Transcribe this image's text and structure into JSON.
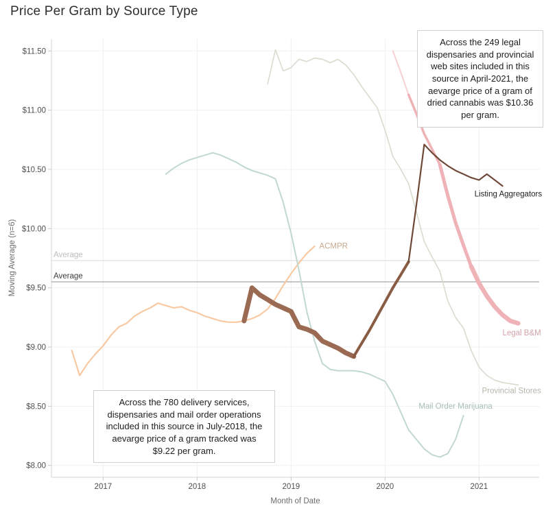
{
  "chart_data": {
    "type": "line",
    "title": "Price Per Gram by Source Type",
    "xlabel": "Month of Date",
    "ylabel": "Moving Average (n=6)",
    "xlim": [
      2016.45,
      2021.64
    ],
    "ylim": [
      7.9,
      11.6
    ],
    "grid": true,
    "legend_position": "inline-end-of-line-labels",
    "x_ticks": [
      {
        "value": 2017,
        "label": "2017"
      },
      {
        "value": 2018,
        "label": "2018"
      },
      {
        "value": 2019,
        "label": "2019"
      },
      {
        "value": 2020,
        "label": "2020"
      },
      {
        "value": 2021,
        "label": "2021"
      }
    ],
    "y_ticks": [
      {
        "value": 8.0,
        "label": "$8.00"
      },
      {
        "value": 8.5,
        "label": "$8.50"
      },
      {
        "value": 9.0,
        "label": "$9.00"
      },
      {
        "value": 9.5,
        "label": "$9.50"
      },
      {
        "value": 10.0,
        "label": "$10.00"
      },
      {
        "value": 10.5,
        "label": "$10.50"
      },
      {
        "value": 11.0,
        "label": "$11.00"
      },
      {
        "value": 11.5,
        "label": "$11.50"
      }
    ],
    "reference_lines": [
      {
        "label": "Average",
        "value": 9.73,
        "line_color": "#d9d9d9",
        "label_color": "#bdbdbd"
      },
      {
        "label": "Average",
        "value": 9.55,
        "line_color": "#8f8f8f",
        "label_color": "#3c3c3c"
      }
    ],
    "annotations": [
      {
        "text": "Across the 249 legal dispensaries and provincial web sites included in this source in April-2021, the aevarge price of a gram of dried cannabis was $10.36 per gram."
      },
      {
        "text": "Across the 780 delivery services, dispensaries and mail order operations included in this source in July-2018, the aevarge price of a gram tracked was $9.22 per gram."
      }
    ],
    "series": [
      {
        "id": "acmpr",
        "name": "ACMPR",
        "label": {
          "text": "ACMPR",
          "color": "#c7a98f",
          "t": 2019.3,
          "v": 9.83,
          "anchor": "start"
        },
        "segments": [
          {
            "color": "#f8c9a2",
            "width": 2.2,
            "points": [
              [
                "2016-09",
                8.97
              ],
              [
                "2016-10",
                8.76
              ],
              [
                "2016-11",
                8.86
              ],
              [
                "2016-12",
                8.94
              ],
              [
                "2017-01",
                9.01
              ],
              [
                "2017-02",
                9.1
              ],
              [
                "2017-03",
                9.17
              ],
              [
                "2017-04",
                9.2
              ],
              [
                "2017-05",
                9.26
              ],
              [
                "2017-06",
                9.3
              ],
              [
                "2017-07",
                9.33
              ],
              [
                "2017-08",
                9.37
              ],
              [
                "2017-09",
                9.35
              ],
              [
                "2017-10",
                9.33
              ],
              [
                "2017-11",
                9.34
              ],
              [
                "2017-12",
                9.31
              ],
              [
                "2018-01",
                9.29
              ],
              [
                "2018-02",
                9.26
              ],
              [
                "2018-03",
                9.24
              ],
              [
                "2018-04",
                9.22
              ],
              [
                "2018-05",
                9.21
              ],
              [
                "2018-06",
                9.21
              ],
              [
                "2018-07",
                9.22
              ],
              [
                "2018-08",
                9.24
              ],
              [
                "2018-09",
                9.27
              ],
              [
                "2018-10",
                9.32
              ],
              [
                "2018-11",
                9.41
              ],
              [
                "2018-12",
                9.52
              ],
              [
                "2019-01",
                9.62
              ],
              [
                "2019-02",
                9.71
              ],
              [
                "2019-03",
                9.79
              ],
              [
                "2019-04",
                9.85
              ]
            ]
          }
        ]
      },
      {
        "id": "mail-order-marijuana",
        "name": "Mail Order Marijuana",
        "label": {
          "text": "Mail Order Marijuana",
          "color": "#a7bfb4",
          "t": 2020.75,
          "v": 8.48,
          "anchor": "middle"
        },
        "segments": [
          {
            "color": "#c0d8ce",
            "width": 2,
            "points": [
              [
                "2017-09",
                10.46
              ],
              [
                "2017-10",
                10.51
              ],
              [
                "2017-11",
                10.55
              ],
              [
                "2017-12",
                10.58
              ],
              [
                "2018-01",
                10.6
              ],
              [
                "2018-02",
                10.62
              ],
              [
                "2018-03",
                10.64
              ],
              [
                "2018-04",
                10.62
              ],
              [
                "2018-05",
                10.59
              ],
              [
                "2018-06",
                10.56
              ],
              [
                "2018-07",
                10.52
              ],
              [
                "2018-08",
                10.49
              ],
              [
                "2018-09",
                10.47
              ],
              [
                "2018-10",
                10.45
              ],
              [
                "2018-11",
                10.42
              ],
              [
                "2018-12",
                10.22
              ],
              [
                "2019-01",
                9.96
              ],
              [
                "2019-02",
                9.65
              ],
              [
                "2019-03",
                9.3
              ],
              [
                "2019-04",
                9.05
              ],
              [
                "2019-05",
                8.86
              ],
              [
                "2019-06",
                8.81
              ],
              [
                "2019-07",
                8.8
              ],
              [
                "2019-08",
                8.8
              ],
              [
                "2019-09",
                8.8
              ],
              [
                "2019-10",
                8.79
              ],
              [
                "2019-11",
                8.77
              ],
              [
                "2019-12",
                8.74
              ],
              [
                "2020-01",
                8.71
              ],
              [
                "2020-02",
                8.6
              ],
              [
                "2020-03",
                8.45
              ],
              [
                "2020-04",
                8.3
              ],
              [
                "2020-05",
                8.22
              ],
              [
                "2020-06",
                8.14
              ],
              [
                "2020-07",
                8.09
              ],
              [
                "2020-08",
                8.07
              ],
              [
                "2020-09",
                8.1
              ],
              [
                "2020-10",
                8.22
              ],
              [
                "2020-11",
                8.42
              ]
            ]
          }
        ]
      },
      {
        "id": "provincial-stores",
        "name": "Provincial Stores",
        "label": {
          "text": "Provincial Stores",
          "color": "#b3b8ab",
          "t": 2021.66,
          "v": 8.61,
          "anchor": "end"
        },
        "segments": [
          {
            "color": "#d8dccd",
            "width": 1.6,
            "points": [
              [
                "2018-10",
                11.22
              ],
              [
                "2018-11",
                11.51
              ],
              [
                "2018-12",
                11.33
              ],
              [
                "2019-01",
                11.36
              ],
              [
                "2019-02",
                11.43
              ],
              [
                "2019-03",
                11.41
              ],
              [
                "2019-04",
                11.44
              ],
              [
                "2019-05",
                11.43
              ],
              [
                "2019-06",
                11.4
              ],
              [
                "2019-07",
                11.43
              ],
              [
                "2019-08",
                11.38
              ],
              [
                "2019-09",
                11.3
              ],
              [
                "2019-10",
                11.2
              ],
              [
                "2019-11",
                11.11
              ],
              [
                "2019-12",
                11.02
              ],
              [
                "2020-01",
                10.83
              ],
              [
                "2020-02",
                10.61
              ],
              [
                "2020-03",
                10.5
              ],
              [
                "2020-04",
                10.38
              ],
              [
                "2020-05",
                10.14
              ],
              [
                "2020-06",
                9.89
              ],
              [
                "2020-07",
                9.76
              ],
              [
                "2020-08",
                9.64
              ],
              [
                "2020-09",
                9.39
              ],
              [
                "2020-10",
                9.25
              ],
              [
                "2020-11",
                9.16
              ],
              [
                "2020-12",
                8.97
              ],
              [
                "2021-01",
                8.83
              ],
              [
                "2021-02",
                8.76
              ],
              [
                "2021-03",
                8.72
              ],
              [
                "2021-04",
                8.7
              ],
              [
                "2021-05",
                8.69
              ],
              [
                "2021-06",
                8.68
              ]
            ]
          }
        ]
      },
      {
        "id": "legal-bm",
        "name": "Legal B&M",
        "label": {
          "text": "Legal B&M",
          "color": "#d2a3a7",
          "t": 2021.66,
          "v": 9.1,
          "anchor": "end"
        },
        "segments": [
          {
            "color": "#f7d0d3",
            "width": 2,
            "points": [
              [
                "2020-02",
                11.5
              ],
              [
                "2020-03",
                11.32
              ],
              [
                "2020-04",
                11.13
              ]
            ]
          },
          {
            "color": "#efb2b6",
            "width": 3.5,
            "points": [
              [
                "2020-04",
                11.13
              ],
              [
                "2020-05",
                10.97
              ],
              [
                "2020-06",
                10.8
              ],
              [
                "2020-07",
                10.67
              ],
              [
                "2020-08",
                10.54
              ]
            ]
          },
          {
            "color": "#efb2b6",
            "width": 5,
            "points": [
              [
                "2020-08",
                10.54
              ],
              [
                "2020-09",
                10.28
              ],
              [
                "2020-10",
                10.05
              ],
              [
                "2020-11",
                9.86
              ],
              [
                "2020-12",
                9.68
              ]
            ]
          },
          {
            "color": "#efb2b6",
            "width": 6.5,
            "points": [
              [
                "2020-12",
                9.68
              ],
              [
                "2021-01",
                9.54
              ],
              [
                "2021-02",
                9.43
              ],
              [
                "2021-03",
                9.34
              ],
              [
                "2021-04",
                9.27
              ],
              [
                "2021-05",
                9.22
              ],
              [
                "2021-06",
                9.2
              ]
            ]
          }
        ]
      },
      {
        "id": "listing-aggregators",
        "name": "Listing Aggregators",
        "label": {
          "text": "Listing Aggregators",
          "color": "#1f1f1f",
          "t": 2021.67,
          "v": 10.27,
          "anchor": "end"
        },
        "segments": [
          {
            "color": "#9a6a52",
            "width": 7,
            "points": [
              [
                "2018-07",
                9.22
              ],
              [
                "2018-08",
                9.5
              ],
              [
                "2018-09",
                9.44
              ],
              [
                "2018-10",
                9.4
              ],
              [
                "2018-11",
                9.36
              ],
              [
                "2018-12",
                9.33
              ],
              [
                "2019-01",
                9.3
              ],
              [
                "2019-02",
                9.17
              ],
              [
                "2019-03",
                9.15
              ],
              [
                "2019-04",
                9.12
              ],
              [
                "2019-05",
                9.05
              ],
              [
                "2019-06",
                9.02
              ],
              [
                "2019-07",
                8.99
              ],
              [
                "2019-08",
                8.95
              ],
              [
                "2019-09",
                8.92
              ]
            ]
          },
          {
            "color": "#8a5c44",
            "width": 4,
            "points": [
              [
                "2019-09",
                8.92
              ],
              [
                "2019-10",
                9.03
              ],
              [
                "2019-11",
                9.14
              ],
              [
                "2019-12",
                9.26
              ],
              [
                "2020-01",
                9.38
              ],
              [
                "2020-02",
                9.5
              ],
              [
                "2020-03",
                9.61
              ],
              [
                "2020-04",
                9.72
              ]
            ]
          },
          {
            "color": "#6f4937",
            "width": 2.2,
            "points": [
              [
                "2020-04",
                9.72
              ],
              [
                "2020-05",
                10.2
              ],
              [
                "2020-06",
                10.71
              ],
              [
                "2020-07",
                10.64
              ],
              [
                "2020-08",
                10.58
              ],
              [
                "2020-09",
                10.53
              ],
              [
                "2020-10",
                10.49
              ],
              [
                "2020-11",
                10.46
              ],
              [
                "2020-12",
                10.43
              ],
              [
                "2021-01",
                10.41
              ],
              [
                "2021-02",
                10.46
              ],
              [
                "2021-03",
                10.41
              ],
              [
                "2021-04",
                10.36
              ]
            ]
          }
        ]
      }
    ]
  }
}
